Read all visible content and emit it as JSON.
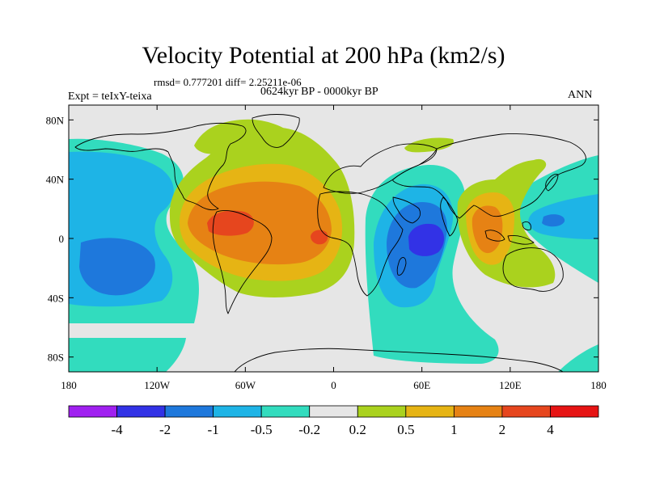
{
  "header": {
    "title": "Velocity Potential at 200 hPa (km2/s)",
    "stats": "rmsd= 0.777201 diff= 2.25211e-06",
    "experiment": "Expt = teIxY-teixa",
    "period": "0624kyr BP - 0000kyr BP",
    "season": "ANN"
  },
  "chart_data": {
    "type": "contour-map",
    "title": "Velocity Potential at 200 hPa (km2/s)",
    "units": "km2/s",
    "xlim": [
      -180,
      180
    ],
    "ylim": [
      -90,
      90
    ],
    "x_ticks": [
      {
        "value": -180,
        "label": "180"
      },
      {
        "value": -120,
        "label": "120W"
      },
      {
        "value": -60,
        "label": "60W"
      },
      {
        "value": 0,
        "label": "0"
      },
      {
        "value": 60,
        "label": "60E"
      },
      {
        "value": 120,
        "label": "120E"
      },
      {
        "value": 180,
        "label": "180"
      }
    ],
    "y_ticks": [
      {
        "value": 80,
        "label": "80N"
      },
      {
        "value": 40,
        "label": "40N"
      },
      {
        "value": 0,
        "label": "0"
      },
      {
        "value": -40,
        "label": "40S"
      },
      {
        "value": -80,
        "label": "80S"
      }
    ],
    "colorbar": {
      "colors": [
        "#a020f0",
        "#3232e6",
        "#1e78dc",
        "#1eb4e6",
        "#32dcbe",
        "#e6e6e6",
        "#aad21e",
        "#e6b414",
        "#e68214",
        "#e6461e",
        "#e61414"
      ],
      "labels": [
        "-4",
        "-2",
        "-1",
        "-0.5",
        "-0.2",
        "0.2",
        "0.5",
        "1",
        "2",
        "4"
      ]
    },
    "regions": [
      {
        "level": 1,
        "sign": "positive",
        "name": "Americas/Atlantic positive band",
        "lon": [
          -110,
          10
        ],
        "lat": [
          -40,
          80
        ]
      },
      {
        "level": 2,
        "sign": "positive",
        "name": "Americas/Atlantic core",
        "lon": [
          -100,
          0
        ],
        "lat": [
          -25,
          35
        ]
      },
      {
        "level": 3,
        "sign": "positive",
        "name": "Caribbean max",
        "lon": [
          -80,
          -60
        ],
        "lat": [
          0,
          12
        ]
      },
      {
        "level": 3,
        "sign": "positive",
        "name": "Gulf of Guinea max",
        "lon": [
          -10,
          0
        ],
        "lat": [
          -3,
          6
        ]
      },
      {
        "level": 2,
        "sign": "positive",
        "name": "Maritime Continent",
        "lon": [
          95,
          115
        ],
        "lat": [
          -15,
          20
        ]
      },
      {
        "level": 1,
        "sign": "positive",
        "name": "Asia-Australia band",
        "lon": [
          85,
          140
        ],
        "lat": [
          -30,
          70
        ]
      },
      {
        "level": -2,
        "sign": "negative",
        "name": "Indian Ocean minimum",
        "lon": [
          20,
          100
        ],
        "lat": [
          -40,
          40
        ]
      },
      {
        "level": -4,
        "sign": "negative",
        "name": "Indian Ocean core",
        "lon": [
          54,
          70
        ],
        "lat": [
          -8,
          5
        ]
      },
      {
        "level": -3,
        "sign": "negative",
        "name": "South Pacific minimum",
        "lon": [
          -160,
          -120
        ],
        "lat": [
          -30,
          -5
        ]
      },
      {
        "level": -1,
        "sign": "negative",
        "name": "Pacific negative band",
        "lon": [
          -180,
          -90
        ],
        "lat": [
          -70,
          55
        ]
      },
      {
        "level": -1,
        "sign": "negative",
        "name": "NW Pacific",
        "lon": [
          130,
          180
        ],
        "lat": [
          -10,
          35
        ]
      }
    ]
  }
}
